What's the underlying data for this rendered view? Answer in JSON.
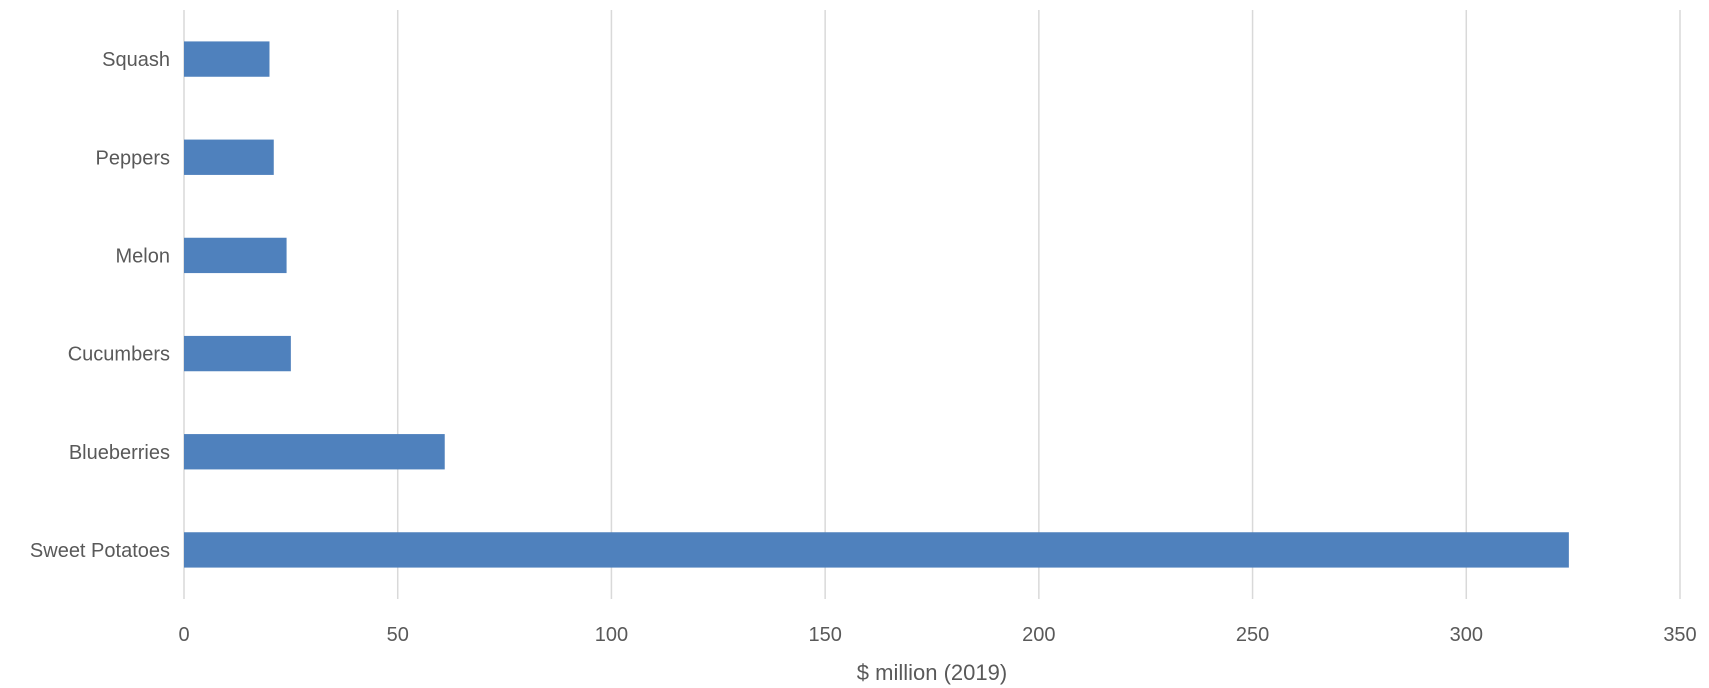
{
  "chart_data": {
    "type": "bar",
    "orientation": "horizontal",
    "categories": [
      "Squash",
      "Peppers",
      "Melon",
      "Cucumbers",
      "Blueberries",
      "Sweet Potatoes"
    ],
    "values": [
      20,
      21,
      24,
      25,
      61,
      324
    ],
    "title": "",
    "xlabel": "$ million (2019)",
    "ylabel": "",
    "xlim": [
      0,
      350
    ],
    "xticks": [
      0,
      50,
      100,
      150,
      200,
      250,
      300,
      350
    ],
    "grid": "vertical",
    "legend": "none",
    "bar_color": "#4f81bd",
    "grid_color": "#d9d9d9",
    "text_color": "#595959"
  }
}
